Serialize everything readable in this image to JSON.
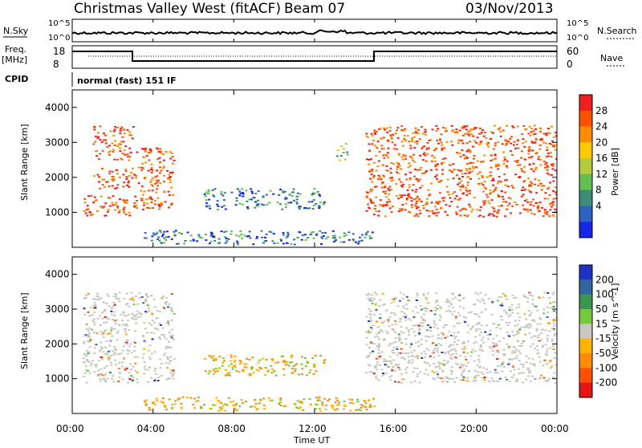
{
  "header": {
    "station": "Christmas Valley West (fitACF)",
    "beam": "Beam 07",
    "date": "03/Nov/2013"
  },
  "panels": {
    "nsky_label": "N.Sky",
    "nsearch_label": "N.Search",
    "freq_label": "Freq.",
    "freq_unit": "[MHz]",
    "nave_label": "Nave",
    "cpid_label": "CPID",
    "cpid_value": "normal (fast) 151 IF",
    "noise_ticks_left": [
      "10^5",
      "10^0"
    ],
    "noise_ticks_right": [
      "10^5",
      "10^0"
    ],
    "freq_ticks": [
      "18",
      "8"
    ],
    "nave_ticks": [
      "60",
      "0"
    ]
  },
  "chart_data": [
    {
      "type": "heatmap",
      "name": "power",
      "ylabel": "Slant Range [km]",
      "y_ticks": [
        1000,
        2000,
        3000,
        4000
      ],
      "ylim": [
        0,
        4500
      ],
      "colorbar": {
        "label": "Power [dB]",
        "ticks": [
          "4",
          "8",
          "12",
          "16",
          "20",
          "24",
          "28"
        ],
        "colors": [
          "#1428e6",
          "#2d64be",
          "#3c8c78",
          "#64be50",
          "#b4cc3c",
          "#ffc800",
          "#ff8c00",
          "#ff5000",
          "#f01e1e"
        ]
      },
      "regions": [
        {
          "t": [
            0.5,
            3.0
          ],
          "r": [
            900,
            1500
          ],
          "level": "high",
          "note": "red band"
        },
        {
          "t": [
            1.0,
            3.0
          ],
          "r": [
            1700,
            2300
          ],
          "level": "high"
        },
        {
          "t": [
            1.0,
            3.0
          ],
          "r": [
            2500,
            3500
          ],
          "level": "high"
        },
        {
          "t": [
            3.0,
            5.0
          ],
          "r": [
            1100,
            2900
          ],
          "level": "high"
        },
        {
          "t": [
            6.5,
            12.5
          ],
          "r": [
            1100,
            1700
          ],
          "level": "low",
          "note": "blue/green patch"
        },
        {
          "t": [
            13.0,
            13.6
          ],
          "r": [
            2500,
            3000
          ],
          "level": "medium"
        },
        {
          "t": [
            14.5,
            24.0
          ],
          "r": [
            900,
            3500
          ],
          "level": "high",
          "note": "red streaks"
        },
        {
          "t": [
            3.5,
            15.0
          ],
          "r": [
            100,
            500
          ],
          "level": "low"
        }
      ]
    },
    {
      "type": "heatmap",
      "name": "velocity",
      "ylabel": "Slant Range [km]",
      "xlabel": "Time UT",
      "x_ticks": [
        "00:00",
        "04:00",
        "08:00",
        "12:00",
        "16:00",
        "20:00",
        "00:00"
      ],
      "y_ticks": [
        1000,
        2000,
        3000,
        4000
      ],
      "ylim": [
        0,
        4500
      ],
      "xlim_hours": [
        0,
        24
      ],
      "colorbar": {
        "label": "Velocity [m s^-1]",
        "ticks": [
          "200",
          "100",
          "50",
          "15",
          "-15",
          "-50",
          "-100",
          "-200"
        ],
        "colors": [
          "#1e32c8",
          "#3264a0",
          "#3c9650",
          "#78c83c",
          "#c8c8c0",
          "#ffb400",
          "#ff8c00",
          "#ff5000",
          "#e61414"
        ]
      },
      "regions": [
        {
          "t": [
            0.5,
            5.0
          ],
          "r": [
            900,
            3500
          ],
          "level": "ground-scatter"
        },
        {
          "t": [
            6.5,
            12.5
          ],
          "r": [
            1100,
            1700
          ],
          "level": "negative"
        },
        {
          "t": [
            14.5,
            24.0
          ],
          "r": [
            900,
            3500
          ],
          "level": "ground-scatter"
        },
        {
          "t": [
            3.5,
            15.0
          ],
          "r": [
            100,
            500
          ],
          "level": "negative"
        }
      ]
    }
  ]
}
